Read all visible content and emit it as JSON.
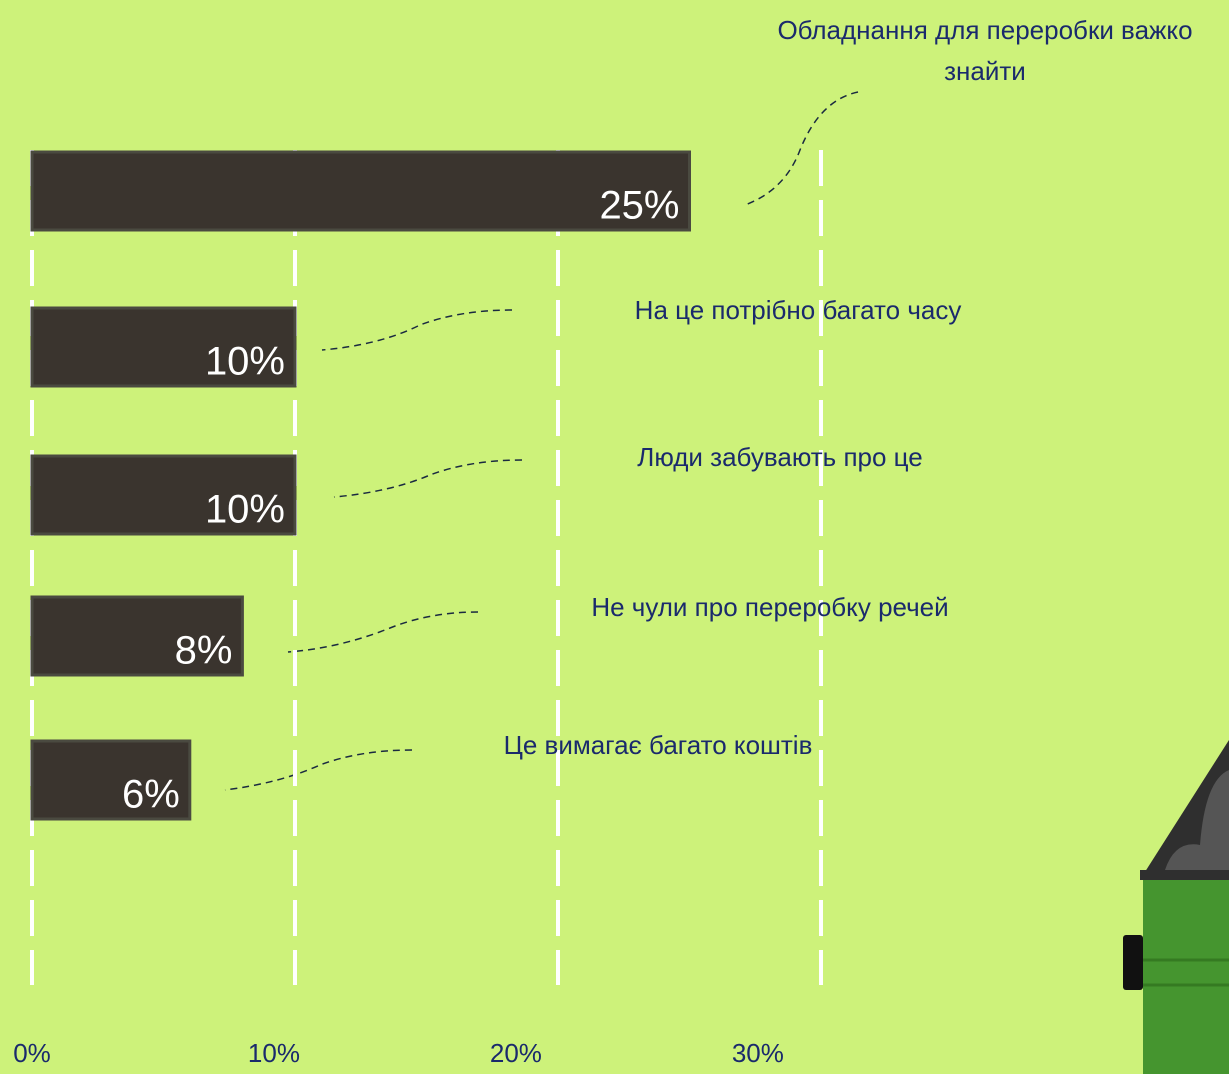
{
  "chart_data": {
    "type": "bar",
    "categories": [
      "Обладнання для переробки важко знайти",
      "На це потрібно багато часу",
      "Люди забувають про це",
      "Не чули про переробку речей",
      "Це вимагає багато коштів"
    ],
    "values": [
      25,
      10,
      10,
      8,
      6
    ],
    "value_labels": [
      "25%",
      "10%",
      "10%",
      "8%",
      "6%"
    ],
    "color": "#3a342e",
    "xlim": [
      0,
      30
    ],
    "xticks": [
      {
        "value": 0,
        "label": "0%"
      },
      {
        "value": 10,
        "label": "10%"
      },
      {
        "value": 20,
        "label": "20%"
      },
      {
        "value": 30,
        "label": "30%"
      }
    ],
    "grid": true
  }
}
